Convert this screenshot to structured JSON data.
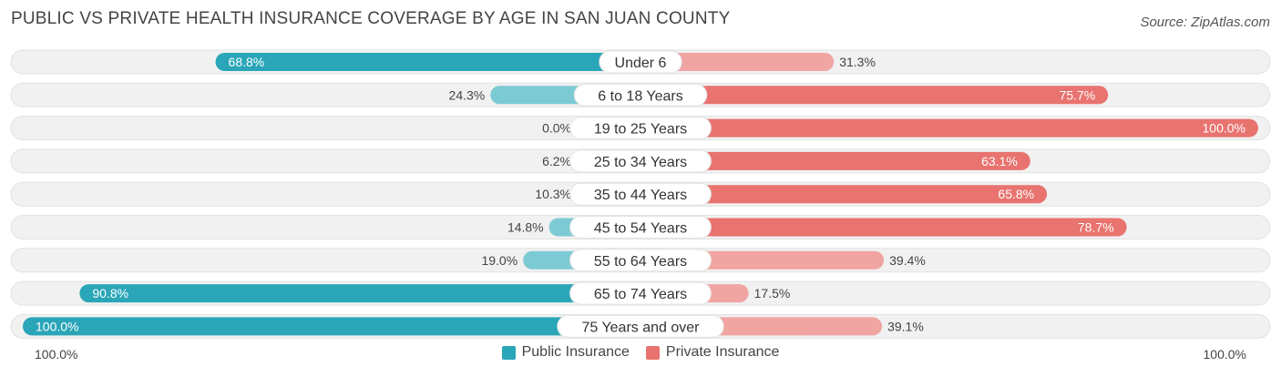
{
  "header": {
    "title": "PUBLIC VS PRIVATE HEALTH INSURANCE COVERAGE BY AGE IN SAN JUAN COUNTY",
    "source": "Source: ZipAtlas.com"
  },
  "colors": {
    "public_strong": "#2aa6b8",
    "public_light": "#7ccad4",
    "private_strong": "#e8736f",
    "private_light": "#f0a5a3",
    "track": "#f1f1f1"
  },
  "chart_data": {
    "type": "bar",
    "title": "PUBLIC VS PRIVATE HEALTH INSURANCE COVERAGE BY AGE IN SAN JUAN COUNTY",
    "categories": [
      "Under 6",
      "6 to 18 Years",
      "19 to 25 Years",
      "25 to 34 Years",
      "35 to 44 Years",
      "45 to 54 Years",
      "55 to 64 Years",
      "65 to 74 Years",
      "75 Years and over"
    ],
    "series": [
      {
        "name": "Public Insurance",
        "values": [
          68.8,
          24.3,
          0.0,
          6.2,
          10.3,
          14.8,
          19.0,
          90.8,
          100.0
        ],
        "labels": [
          "68.8%",
          "24.3%",
          "0.0%",
          "6.2%",
          "10.3%",
          "14.8%",
          "19.0%",
          "90.8%",
          "100.0%"
        ]
      },
      {
        "name": "Private Insurance",
        "values": [
          31.3,
          75.7,
          100.0,
          63.1,
          65.8,
          78.7,
          39.4,
          17.5,
          39.1
        ],
        "labels": [
          "31.3%",
          "75.7%",
          "100.0%",
          "63.1%",
          "65.8%",
          "78.7%",
          "39.4%",
          "17.5%",
          "39.1%"
        ]
      }
    ],
    "xlim": [
      -100,
      100
    ],
    "axis_left_label": "100.0%",
    "axis_right_label": "100.0%",
    "legend_position": "bottom-center"
  }
}
